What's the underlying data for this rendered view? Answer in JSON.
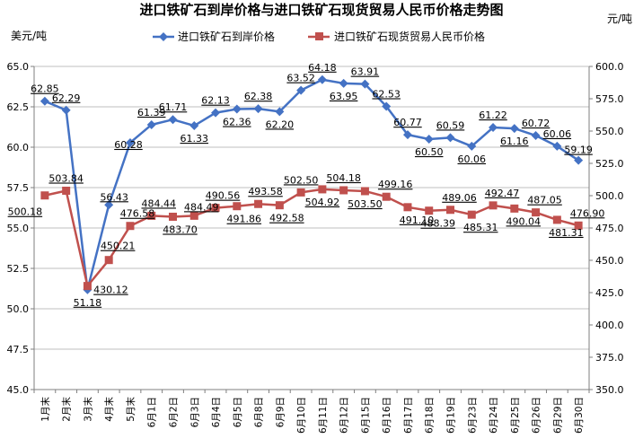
{
  "chart_data": {
    "type": "line",
    "title": "进口铁矿石到岸价格与进口铁矿石现货贸易人民币价格走势图",
    "ylabel_left": "美元/吨",
    "ylabel_right": "元/吨",
    "ylim_left": [
      45.0,
      65.0
    ],
    "ylim_right": [
      350.0,
      600.0
    ],
    "yticks_left": [
      "45.0",
      "47.5",
      "50.0",
      "52.5",
      "55.0",
      "57.5",
      "60.0",
      "62.5",
      "65.0"
    ],
    "yticks_right": [
      "350.0",
      "375.0",
      "400.0",
      "425.0",
      "450.0",
      "475.0",
      "500.0",
      "525.0",
      "550.0",
      "575.0",
      "600.0"
    ],
    "legend_position": "top",
    "grid": true,
    "categories": [
      "1月末",
      "2月末",
      "3月末",
      "4月末",
      "5月末",
      "6月1日",
      "6月2日",
      "6月3日",
      "6月4日",
      "6月5日",
      "6月8日",
      "6月9日",
      "6月10日",
      "6月11日",
      "6月12日",
      "6月15日",
      "6月16日",
      "6月17日",
      "6月18日",
      "6月19日",
      "6月23日",
      "6月24日",
      "6月25日",
      "6月26日",
      "6月29日",
      "6月30日"
    ],
    "series": [
      {
        "name": "进口铁矿石到岸价格",
        "axis": "left",
        "color": "#4472C4",
        "marker": "diamond",
        "values": [
          62.85,
          62.29,
          51.18,
          56.43,
          60.28,
          61.39,
          61.71,
          61.33,
          62.13,
          62.36,
          62.38,
          62.2,
          63.52,
          64.18,
          63.95,
          63.91,
          62.53,
          60.77,
          60.5,
          60.59,
          60.06,
          61.22,
          61.16,
          60.72,
          60.06,
          59.19
        ],
        "labels": [
          "62.85",
          "62.29",
          "51.18",
          "56.43",
          "60.28",
          "61.39",
          "61.71",
          "61.33",
          "62.13",
          "62.36",
          "62.38",
          "62.20",
          "63.52",
          "64.18",
          "63.95",
          "63.91",
          "62.53",
          "60.77",
          "60.50",
          "60.59",
          "60.06",
          "61.22",
          "61.16",
          "60.72",
          "60.06",
          "59.19"
        ]
      },
      {
        "name": "进口铁矿石现货贸易人民币价格",
        "axis": "right",
        "color": "#C0504D",
        "marker": "square",
        "values": [
          500.18,
          503.84,
          430.12,
          450.21,
          476.58,
          484.44,
          483.7,
          484.49,
          490.56,
          491.86,
          493.58,
          492.58,
          502.5,
          504.92,
          504.18,
          503.5,
          499.16,
          491.1,
          488.39,
          489.06,
          485.31,
          492.47,
          490.04,
          487.05,
          481.31,
          476.9
        ],
        "labels": [
          "500.18",
          "503.84",
          "430.12",
          "450.21",
          "476.58",
          "484.44",
          "483.70",
          "484.49",
          "490.56",
          "491.86",
          "493.58",
          "492.58",
          "502.50",
          "504.92",
          "504.18",
          "503.50",
          "499.16",
          "491.10",
          "488.39",
          "489.06",
          "485.31",
          "492.47",
          "490.04",
          "487.05",
          "481.31",
          "476.90"
        ]
      }
    ]
  }
}
